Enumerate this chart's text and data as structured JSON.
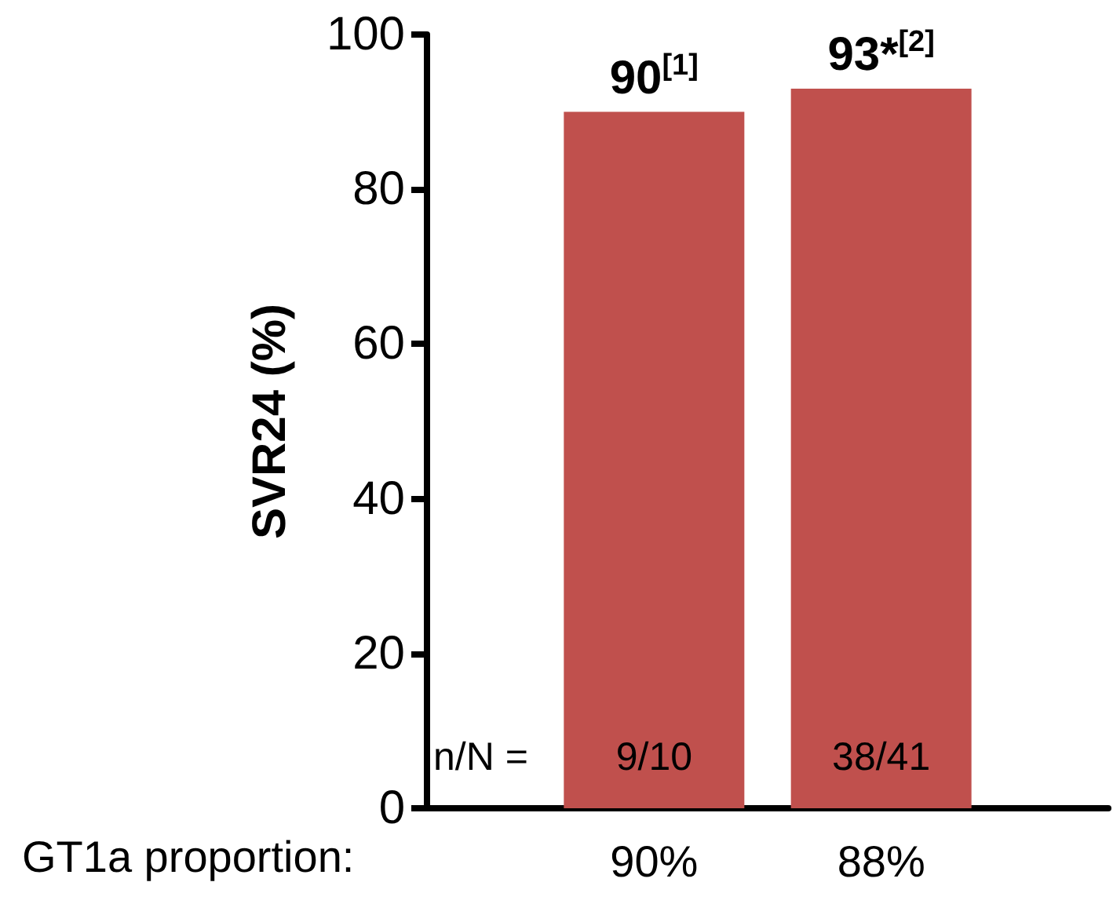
{
  "chart_data": {
    "type": "bar",
    "ylabel": "SVR24 (%)",
    "xlabel": "GT1a proportion:",
    "categories": [
      "90%",
      "88%"
    ],
    "values": [
      90,
      93
    ],
    "color": "#c0504d",
    "value_labels": [
      "90$^{[1]}$",
      "93*$^{[2]}$"
    ],
    "ylim": [
      0,
      100
    ],
    "yticks": [
      0,
      20,
      40,
      60,
      80,
      100
    ],
    "grid": false,
    "annotations": [
      "n/N =",
      "9/10",
      "38/41"
    ]
  }
}
